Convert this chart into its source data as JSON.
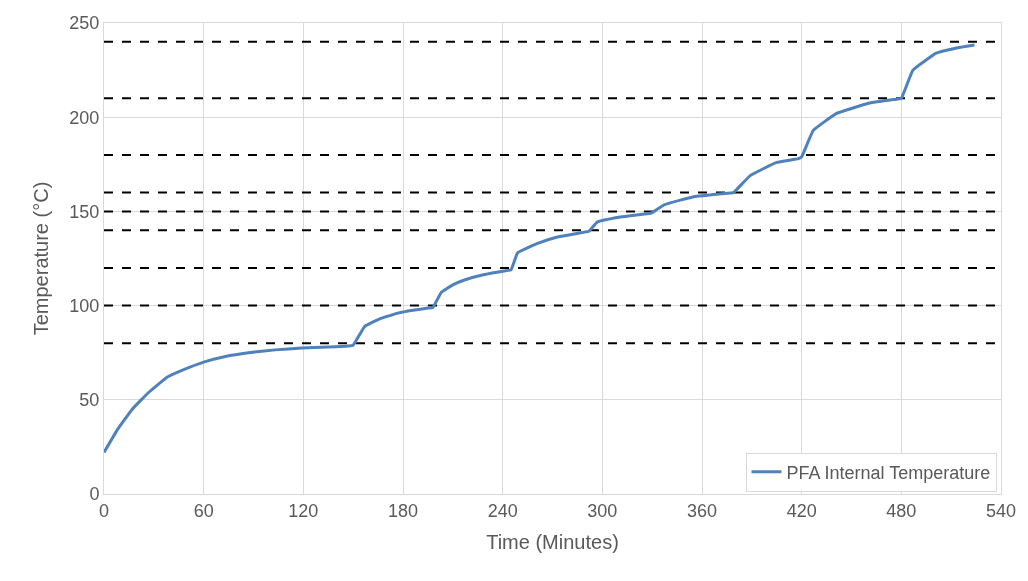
{
  "chart_data": {
    "type": "line",
    "xlabel": "Time (Minutes)",
    "ylabel": "Temperature (°C)",
    "xlim": [
      0,
      540
    ],
    "xticks": [
      0,
      60,
      120,
      180,
      240,
      300,
      360,
      420,
      480,
      540
    ],
    "ylim": [
      0,
      250
    ],
    "yticks": [
      0,
      50,
      100,
      150,
      200,
      250
    ],
    "grid": true,
    "legend": "bottom right",
    "line_style": "solid",
    "marker": "none",
    "series": [
      {
        "name": "PFA Internal Temperature",
        "color": "#4f81bd",
        "x": [
          0,
          8,
          17,
          27,
          38,
          48,
          60,
          73,
          87,
          103,
          119,
          135,
          147,
          150,
          157,
          166,
          177,
          186,
          195,
          198,
          203,
          210,
          217,
          229,
          241,
          245,
          249,
          261,
          273,
          289,
          292,
          297,
          311,
          329,
          330,
          337,
          347,
          357,
          367,
          377,
          379,
          389,
          405,
          418,
          420,
          427,
          441,
          461,
          478,
          480,
          487,
          501,
          512,
          524
        ],
        "values": [
          22,
          34,
          45,
          54,
          62,
          66,
          70,
          73,
          75,
          76.5,
          77.5,
          78,
          78.6,
          79,
          89,
          93,
          96,
          97.5,
          98.7,
          99,
          107,
          111,
          113.6,
          116.5,
          118.4,
          119,
          128,
          133,
          136.4,
          139,
          139.5,
          144.4,
          147,
          149,
          149.3,
          153.4,
          156,
          158,
          159,
          159.8,
          160,
          169,
          176,
          178,
          179,
          193,
          202,
          207.5,
          209.7,
          210,
          225,
          234,
          236.5,
          238.3
        ]
      }
    ],
    "ref_lines": [
      {
        "axis": "y",
        "value": 80,
        "color": "#000000",
        "line_style": "dashed"
      },
      {
        "axis": "y",
        "value": 100,
        "color": "#000000",
        "line_style": "dashed"
      },
      {
        "axis": "y",
        "value": 120,
        "color": "#000000",
        "line_style": "dashed"
      },
      {
        "axis": "y",
        "value": 140,
        "color": "#000000",
        "line_style": "dashed"
      },
      {
        "axis": "y",
        "value": 150,
        "color": "#000000",
        "line_style": "dashed"
      },
      {
        "axis": "y",
        "value": 160,
        "color": "#000000",
        "line_style": "dashed"
      },
      {
        "axis": "y",
        "value": 180,
        "color": "#000000",
        "line_style": "dashed"
      },
      {
        "axis": "y",
        "value": 210,
        "color": "#000000",
        "line_style": "dashed"
      },
      {
        "axis": "y",
        "value": 240,
        "color": "#000000",
        "line_style": "dashed"
      }
    ]
  }
}
